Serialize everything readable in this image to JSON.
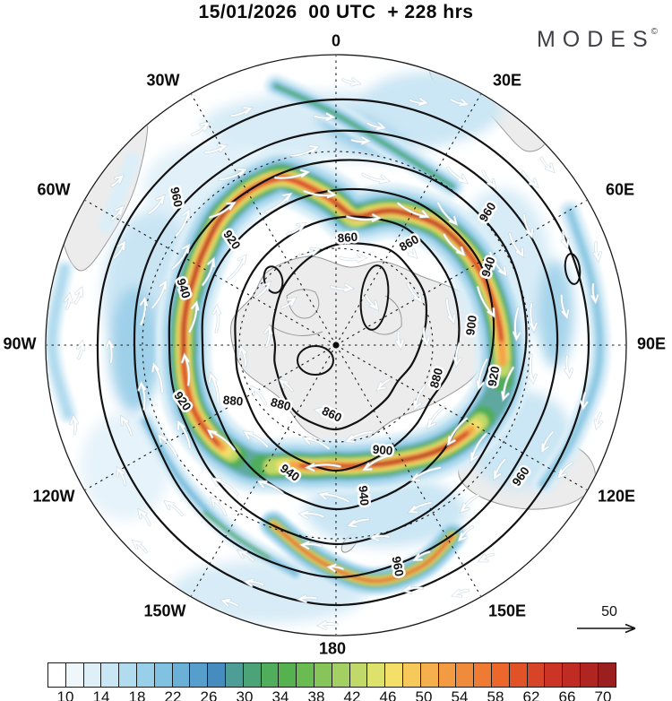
{
  "header": {
    "title": "15/01/2026  00 UTC  + 228 hrs"
  },
  "brand": {
    "logo_text": "MODES",
    "logo_mark": "©",
    "logo_color": "#3f3f46"
  },
  "map": {
    "projection": "polar stereographic (pole at center)",
    "rim_longitude_labels": [
      {
        "text": "0"
      },
      {
        "text": "30E"
      },
      {
        "text": "60E"
      },
      {
        "text": "90E"
      },
      {
        "text": "120E"
      },
      {
        "text": "150E"
      },
      {
        "text": "180"
      },
      {
        "text": "150W"
      },
      {
        "text": "120W"
      },
      {
        "text": "90W"
      },
      {
        "text": "60W"
      },
      {
        "text": "30W"
      }
    ],
    "contour_labels": [
      {
        "text": "960"
      },
      {
        "text": "920"
      },
      {
        "text": "940"
      },
      {
        "text": "860"
      },
      {
        "text": "860"
      },
      {
        "text": "960"
      },
      {
        "text": "940"
      },
      {
        "text": "900"
      },
      {
        "text": "920"
      },
      {
        "text": "880"
      },
      {
        "text": "920"
      },
      {
        "text": "880"
      },
      {
        "text": "880"
      },
      {
        "text": "860"
      },
      {
        "text": "940"
      },
      {
        "text": "900"
      },
      {
        "text": "940"
      },
      {
        "text": "960"
      },
      {
        "text": "960"
      }
    ],
    "vector_reference_label": "50"
  },
  "chart_data": {
    "type": "heatmap",
    "subtype": "polar stereographic weather map: shaded wind speed, black height contours, white wind vectors",
    "title": "15/01/2026 00 UTC + 228 hrs",
    "shading": {
      "field": "wind speed",
      "cell_min": 8,
      "cell_max": 72,
      "cell_step": 2,
      "tick_labels": [
        "10",
        "14",
        "18",
        "22",
        "26",
        "30",
        "34",
        "38",
        "42",
        "46",
        "50",
        "54",
        "58",
        "62",
        "66",
        "70"
      ],
      "cell_colors": [
        "#FFFFFF",
        "#EFF7FB",
        "#DEEFF8",
        "#C9E6F4",
        "#B1DCEF",
        "#98D0EA",
        "#81C1E1",
        "#6BB1D7",
        "#569FCC",
        "#478CBF",
        "#4E9D97",
        "#4BA478",
        "#4FAD5B",
        "#55B24E",
        "#6BBB53",
        "#87C55B",
        "#A3CF63",
        "#C0D968",
        "#DCE26C",
        "#F4DF68",
        "#F7C95A",
        "#F5AF4D",
        "#F39B43",
        "#F18B3C",
        "#EF7A34",
        "#ED672C",
        "#E15227",
        "#D74427",
        "#CC3525",
        "#BF2C23",
        "#AF2521",
        "#9B1F1F"
      ]
    },
    "contours": {
      "labeled_values": [
        860,
        880,
        900,
        920,
        940,
        960
      ],
      "interval": 20
    },
    "vectors": {
      "reference_value": 50,
      "arrow_color": "#ffffff"
    },
    "rim_longitudes": [
      "0",
      "30E",
      "60E",
      "90E",
      "120E",
      "150E",
      "180",
      "150W",
      "120W",
      "90W",
      "60W",
      "30W"
    ],
    "legend_position": "bottom",
    "grid": "dashed polar graticule: meridians every 30 degrees, two latitude circles"
  }
}
